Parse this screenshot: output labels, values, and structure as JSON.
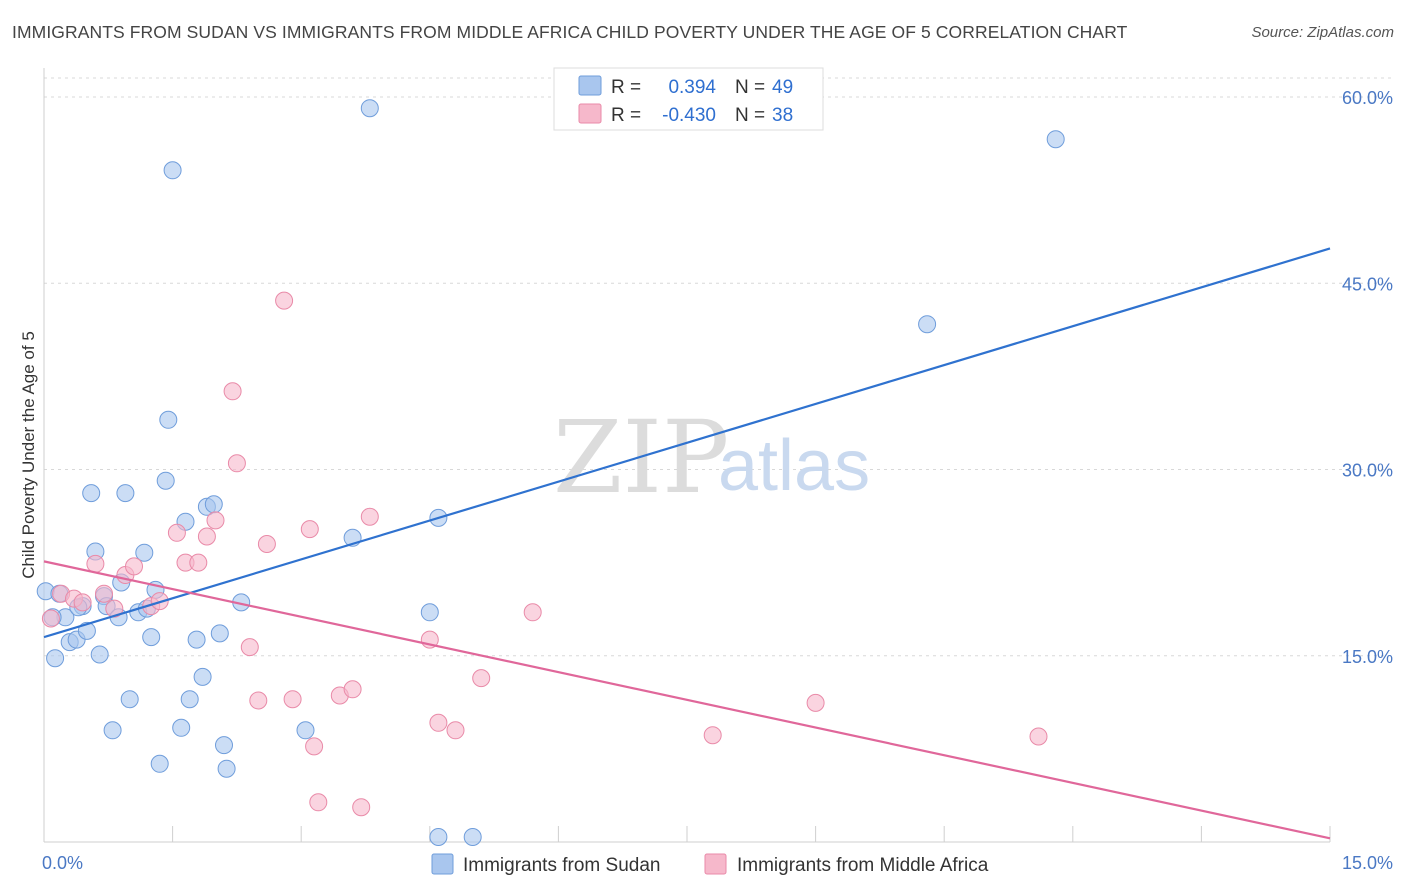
{
  "header": {
    "title": "IMMIGRANTS FROM SUDAN VS IMMIGRANTS FROM MIDDLE AFRICA CHILD POVERTY UNDER THE AGE OF 5 CORRELATION CHART",
    "source": "Source: ZipAtlas.com"
  },
  "watermark": {
    "zip": "ZIP",
    "atlas": "atlas"
  },
  "chart_data": {
    "type": "scatter",
    "xlabel": "",
    "ylabel": "Child Poverty Under the Age of 5",
    "xlim": [
      0,
      15
    ],
    "ylim": [
      0,
      60
    ],
    "x_tick_labels": [
      "0.0%",
      "15.0%"
    ],
    "y_ticks": [
      15,
      30,
      45,
      60
    ],
    "y_tick_labels": [
      "15.0%",
      "30.0%",
      "45.0%",
      "60.0%"
    ],
    "grid": true,
    "legend": {
      "position": "top-center",
      "rows": [
        {
          "r_label": "R =",
          "r_value": "0.394",
          "n_label": "N =",
          "n_value": "49"
        },
        {
          "r_label": "R =",
          "r_value": "-0.430",
          "n_label": "N =",
          "n_value": "38"
        }
      ]
    },
    "series": [
      {
        "name": "Immigrants from Sudan",
        "color": "#a9c6ee",
        "stroke": "#6f9ddb",
        "trend_color": "#2f72cf",
        "trend": {
          "x": [
            0,
            15
          ],
          "y": [
            16.5,
            47.8
          ]
        },
        "points": [
          [
            0.02,
            20.2
          ],
          [
            0.13,
            14.8
          ],
          [
            0.18,
            20.0
          ],
          [
            0.25,
            18.1
          ],
          [
            0.3,
            16.1
          ],
          [
            0.38,
            16.3
          ],
          [
            0.45,
            19.0
          ],
          [
            0.5,
            17.0
          ],
          [
            0.55,
            28.1
          ],
          [
            0.6,
            23.4
          ],
          [
            0.65,
            15.1
          ],
          [
            0.7,
            19.8
          ],
          [
            0.73,
            19.0
          ],
          [
            0.8,
            9.0
          ],
          [
            0.87,
            18.1
          ],
          [
            0.9,
            20.9
          ],
          [
            0.95,
            28.1
          ],
          [
            1.0,
            11.5
          ],
          [
            1.1,
            18.5
          ],
          [
            1.17,
            23.3
          ],
          [
            1.25,
            16.5
          ],
          [
            1.3,
            20.3
          ],
          [
            1.35,
            6.3
          ],
          [
            1.42,
            29.1
          ],
          [
            1.45,
            34.0
          ],
          [
            1.5,
            54.1
          ],
          [
            1.6,
            9.2
          ],
          [
            1.7,
            11.5
          ],
          [
            1.78,
            16.3
          ],
          [
            1.85,
            13.3
          ],
          [
            1.9,
            27.0
          ],
          [
            1.98,
            27.2
          ],
          [
            2.05,
            16.8
          ],
          [
            2.1,
            7.8
          ],
          [
            2.13,
            5.9
          ],
          [
            2.3,
            19.3
          ],
          [
            1.65,
            25.8
          ],
          [
            3.05,
            9.0
          ],
          [
            3.6,
            24.5
          ],
          [
            3.8,
            59.1
          ],
          [
            4.5,
            18.5
          ],
          [
            4.6,
            26.1
          ],
          [
            4.6,
            0.4
          ],
          [
            5.0,
            0.4
          ],
          [
            10.3,
            41.7
          ],
          [
            11.8,
            56.6
          ],
          [
            0.1,
            18.1
          ],
          [
            1.2,
            18.8
          ],
          [
            0.4,
            18.9
          ]
        ]
      },
      {
        "name": "Immigrants from Middle Africa",
        "color": "#f6b8cb",
        "stroke": "#e98aa8",
        "trend_color": "#e0679a",
        "trend": {
          "x": [
            0,
            15
          ],
          "y": [
            22.6,
            0.3
          ]
        },
        "points": [
          [
            0.08,
            18.0
          ],
          [
            0.2,
            20.0
          ],
          [
            0.35,
            19.6
          ],
          [
            0.45,
            19.3
          ],
          [
            0.6,
            22.4
          ],
          [
            0.7,
            20.0
          ],
          [
            0.82,
            18.8
          ],
          [
            0.95,
            21.5
          ],
          [
            1.05,
            22.2
          ],
          [
            1.25,
            19.0
          ],
          [
            1.35,
            19.4
          ],
          [
            1.55,
            24.9
          ],
          [
            1.65,
            22.5
          ],
          [
            1.8,
            22.5
          ],
          [
            1.9,
            24.6
          ],
          [
            2.0,
            25.9
          ],
          [
            2.2,
            36.3
          ],
          [
            2.25,
            30.5
          ],
          [
            2.4,
            15.7
          ],
          [
            2.5,
            11.4
          ],
          [
            2.6,
            24.0
          ],
          [
            2.8,
            43.6
          ],
          [
            2.9,
            11.5
          ],
          [
            3.1,
            25.2
          ],
          [
            3.15,
            7.7
          ],
          [
            3.2,
            3.2
          ],
          [
            3.45,
            11.8
          ],
          [
            3.6,
            12.3
          ],
          [
            3.7,
            2.8
          ],
          [
            3.8,
            26.2
          ],
          [
            4.5,
            16.3
          ],
          [
            4.6,
            9.6
          ],
          [
            4.8,
            9.0
          ],
          [
            5.1,
            13.2
          ],
          [
            5.7,
            18.5
          ],
          [
            7.8,
            8.6
          ],
          [
            9.0,
            11.2
          ],
          [
            11.6,
            8.5
          ]
        ]
      }
    ]
  }
}
